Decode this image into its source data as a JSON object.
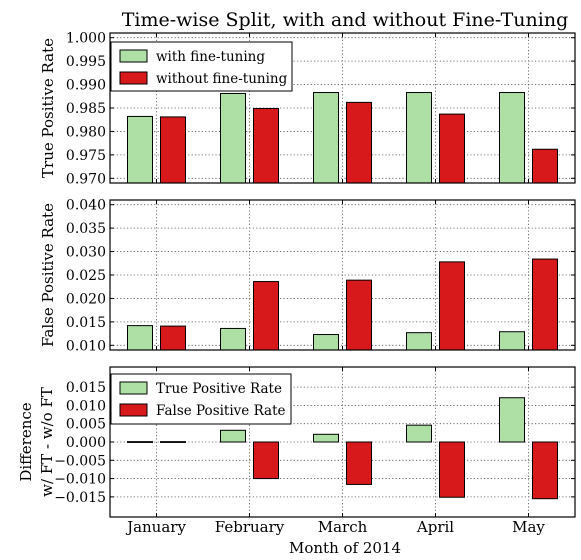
{
  "title": "Time-wise Split, with and without Fine-Tuning",
  "xlabel": "Month of 2014",
  "colors": {
    "green": "#aee0a6",
    "red": "#d7191c",
    "edge": "#000000",
    "grid": "#555555"
  },
  "chart_data": [
    {
      "type": "bar",
      "panel": "top",
      "ylabel": "True Positive Rate",
      "categories": [
        "January",
        "February",
        "March",
        "April",
        "May"
      ],
      "ylim": [
        0.969,
        1.001
      ],
      "yticks": [
        "0.970",
        "0.975",
        "0.980",
        "0.985",
        "0.990",
        "0.995",
        "1.000"
      ],
      "grid": true,
      "legend_position": "upper-left",
      "series": [
        {
          "name": "with fine-tuning",
          "color": "#aee0a6",
          "values": [
            0.9832,
            0.9881,
            0.9883,
            0.9883,
            0.9883
          ]
        },
        {
          "name": "without fine-tuning",
          "color": "#d7191c",
          "values": [
            0.9831,
            0.9849,
            0.9862,
            0.9837,
            0.9762
          ]
        }
      ]
    },
    {
      "type": "bar",
      "panel": "middle",
      "ylabel": "False Positive Rate",
      "categories": [
        "January",
        "February",
        "March",
        "April",
        "May"
      ],
      "ylim": [
        0.009,
        0.041
      ],
      "yticks": [
        "0.010",
        "0.015",
        "0.020",
        "0.025",
        "0.030",
        "0.035",
        "0.040"
      ],
      "grid": true,
      "series": [
        {
          "name": "with fine-tuning",
          "color": "#aee0a6",
          "values": [
            0.0142,
            0.0136,
            0.0123,
            0.0127,
            0.0129
          ]
        },
        {
          "name": "without fine-tuning",
          "color": "#d7191c",
          "values": [
            0.0141,
            0.0236,
            0.0239,
            0.0278,
            0.0284
          ]
        }
      ]
    },
    {
      "type": "bar",
      "panel": "bottom",
      "ylabel": [
        "Difference",
        "w/ FT - w/o FT"
      ],
      "categories": [
        "January",
        "February",
        "March",
        "April",
        "May"
      ],
      "ylim": [
        -0.0205,
        0.0205
      ],
      "yticks": [
        "−0.015",
        "−0.010",
        "−0.005",
        "0.000",
        "0.005",
        "0.010",
        "0.015"
      ],
      "grid": true,
      "legend_position": "upper-left",
      "series": [
        {
          "name": "True Positive Rate",
          "color": "#aee0a6",
          "values": [
            0.0001,
            0.0032,
            0.0021,
            0.0046,
            0.0121
          ]
        },
        {
          "name": "False Positive Rate",
          "color": "#d7191c",
          "values": [
            0.0001,
            -0.01,
            -0.0116,
            -0.0151,
            -0.0155
          ]
        }
      ]
    }
  ]
}
